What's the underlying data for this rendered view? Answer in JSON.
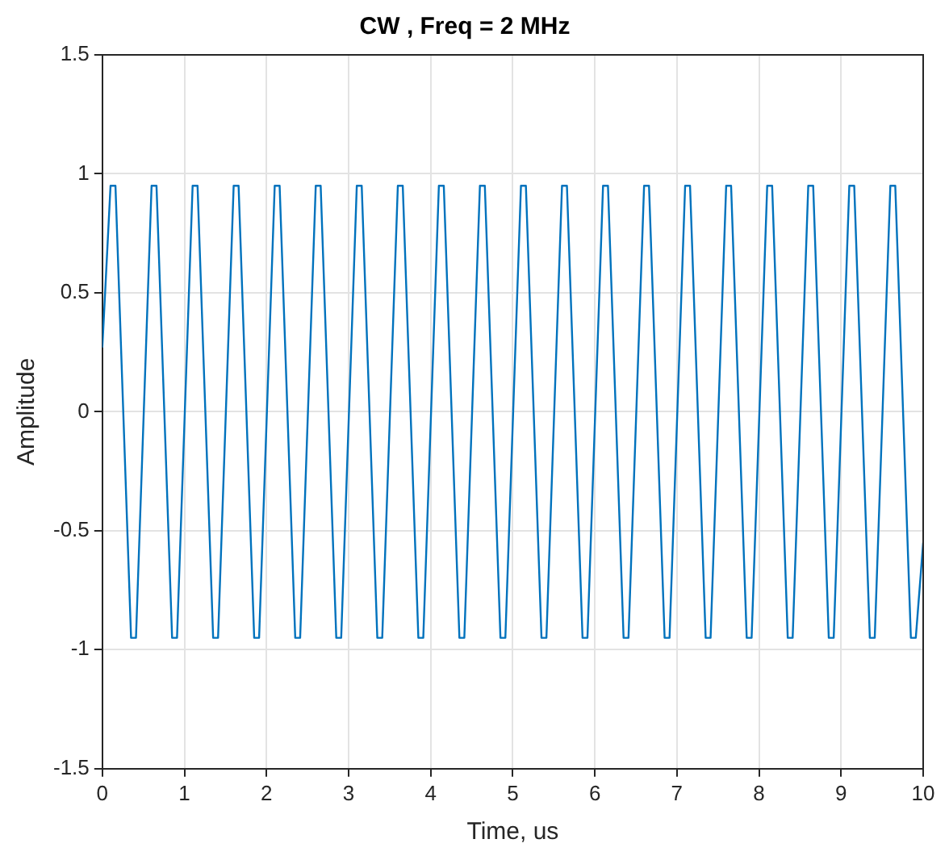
{
  "chart_data": {
    "type": "line",
    "title": "CW , Freq = 2 MHz",
    "xlabel": "Time, us",
    "ylabel": "Amplitude",
    "x": [
      0,
      0.1,
      0.16,
      0.35,
      0.41,
      0.6,
      0.66,
      0.85,
      0.91,
      1.1,
      1.16,
      1.35,
      1.41,
      1.6,
      1.66,
      1.85,
      1.91,
      2.1,
      2.16,
      2.35,
      2.41,
      2.6,
      2.66,
      2.85,
      2.91,
      3.1,
      3.16,
      3.35,
      3.41,
      3.6,
      3.66,
      3.85,
      3.91,
      4.1,
      4.16,
      4.35,
      4.41,
      4.6,
      4.66,
      4.85,
      4.91,
      5.1,
      5.16,
      5.35,
      5.41,
      5.6,
      5.66,
      5.85,
      5.91,
      6.1,
      6.16,
      6.35,
      6.41,
      6.6,
      6.66,
      6.85,
      6.91,
      7.1,
      7.16,
      7.35,
      7.41,
      7.6,
      7.66,
      7.85,
      7.91,
      8.1,
      8.16,
      8.35,
      8.41,
      8.6,
      8.66,
      8.85,
      8.91,
      9.1,
      9.16,
      9.35,
      9.41,
      9.6,
      9.66,
      9.85,
      9.91,
      10
    ],
    "series": [
      {
        "color": "#0072bd",
        "values": [
          0.27,
          0.95,
          0.95,
          -0.95,
          -0.95,
          0.95,
          0.95,
          -0.95,
          -0.95,
          0.95,
          0.95,
          -0.95,
          -0.95,
          0.95,
          0.95,
          -0.95,
          -0.95,
          0.95,
          0.95,
          -0.95,
          -0.95,
          0.95,
          0.95,
          -0.95,
          -0.95,
          0.95,
          0.95,
          -0.95,
          -0.95,
          0.95,
          0.95,
          -0.95,
          -0.95,
          0.95,
          0.95,
          -0.95,
          -0.95,
          0.95,
          0.95,
          -0.95,
          -0.95,
          0.95,
          0.95,
          -0.95,
          -0.95,
          0.95,
          0.95,
          -0.95,
          -0.95,
          0.95,
          0.95,
          -0.95,
          -0.95,
          0.95,
          0.95,
          -0.95,
          -0.95,
          0.95,
          0.95,
          -0.95,
          -0.95,
          0.95,
          0.95,
          -0.95,
          -0.95,
          0.95,
          0.95,
          -0.95,
          -0.95,
          0.95,
          0.95,
          -0.95,
          -0.95,
          0.95,
          0.95,
          -0.95,
          -0.95,
          0.95,
          0.95,
          -0.95,
          -0.95,
          -0.55
        ]
      }
    ],
    "xlim": [
      0,
      10
    ],
    "xticks": [
      0,
      1,
      2,
      3,
      4,
      5,
      6,
      7,
      8,
      9,
      10
    ],
    "ylim": [
      -1.5,
      1.5
    ],
    "yticks": [
      -1.5,
      -1,
      -0.5,
      0,
      0.5,
      1,
      1.5
    ],
    "grid": true,
    "legend": false,
    "marker": "none",
    "line_style": "solid"
  }
}
